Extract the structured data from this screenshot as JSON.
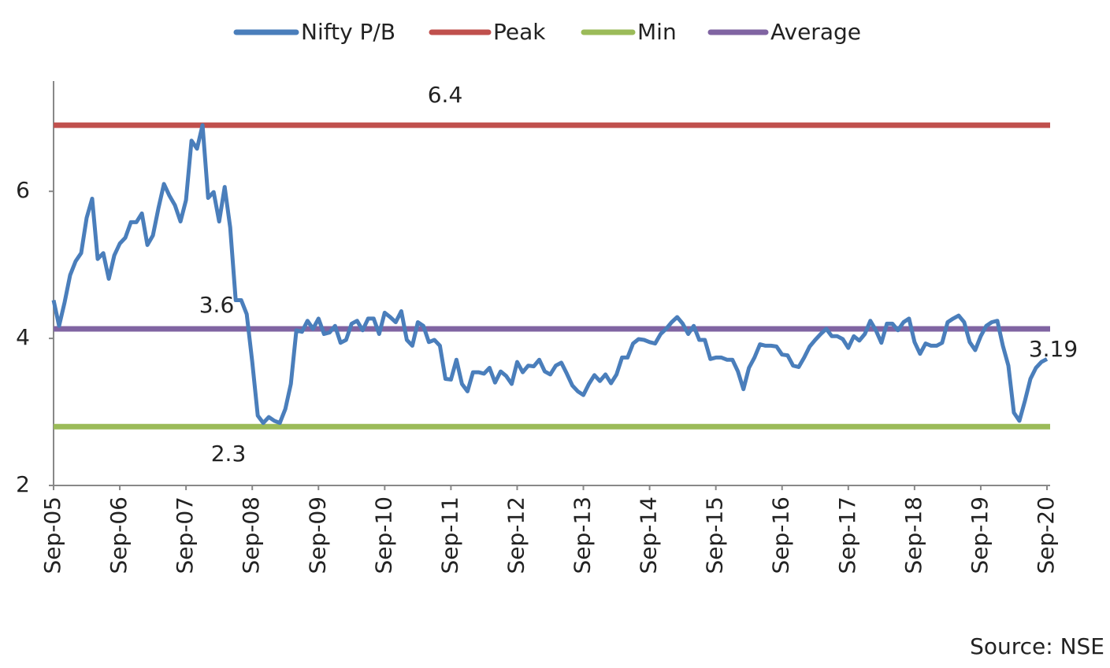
{
  "chart_data": {
    "type": "line",
    "categories": [
      "Sep-05",
      null,
      null,
      null,
      null,
      null,
      null,
      null,
      null,
      null,
      null,
      null,
      "Sep-06",
      null,
      null,
      null,
      null,
      null,
      null,
      null,
      null,
      null,
      null,
      null,
      "Sep-07",
      null,
      null,
      null,
      null,
      null,
      null,
      null,
      null,
      null,
      null,
      null,
      "Sep-08",
      null,
      null,
      null,
      null,
      null,
      null,
      null,
      null,
      null,
      null,
      null,
      "Sep-09",
      null,
      null,
      null,
      null,
      null,
      null,
      null,
      null,
      null,
      null,
      null,
      "Sep-10",
      null,
      null,
      null,
      null,
      null,
      null,
      null,
      null,
      null,
      null,
      null,
      "Sep-11",
      null,
      null,
      null,
      null,
      null,
      null,
      null,
      null,
      null,
      null,
      null,
      "Sep-12",
      null,
      null,
      null,
      null,
      null,
      null,
      null,
      null,
      null,
      null,
      null,
      "Sep-13",
      null,
      null,
      null,
      null,
      null,
      null,
      null,
      null,
      null,
      null,
      null,
      "Sep-14",
      null,
      null,
      null,
      null,
      null,
      null,
      null,
      null,
      null,
      null,
      null,
      "Sep-15",
      null,
      null,
      null,
      null,
      null,
      null,
      null,
      null,
      null,
      null,
      null,
      "Sep-16",
      null,
      null,
      null,
      null,
      null,
      null,
      null,
      null,
      null,
      null,
      null,
      "Sep-17",
      null,
      null,
      null,
      null,
      null,
      null,
      null,
      null,
      null,
      null,
      null,
      "Sep-18",
      null,
      null,
      null,
      null,
      null,
      null,
      null,
      null,
      null,
      null,
      null,
      "Sep-19",
      null,
      null,
      null,
      null,
      null,
      null,
      null,
      null,
      null,
      null,
      null,
      "Sep-20"
    ],
    "series": [
      {
        "name": "Nifty P/B",
        "color": "#4a7ebb",
        "values": [
          4.52,
          4.17,
          4.49,
          4.86,
          5.05,
          5.16,
          5.64,
          5.9,
          5.08,
          5.16,
          4.81,
          5.13,
          5.29,
          5.37,
          5.58,
          5.58,
          5.7,
          5.27,
          5.4,
          5.77,
          6.1,
          5.94,
          5.81,
          5.59,
          5.88,
          6.69,
          6.58,
          6.9,
          5.91,
          5.99,
          5.59,
          6.06,
          5.51,
          4.52,
          4.52,
          4.33,
          3.68,
          2.95,
          2.85,
          2.93,
          2.88,
          2.85,
          3.04,
          3.38,
          4.11,
          4.09,
          4.24,
          4.13,
          4.27,
          4.06,
          4.08,
          4.17,
          3.94,
          3.98,
          4.2,
          4.24,
          4.11,
          4.27,
          4.27,
          4.06,
          4.35,
          4.29,
          4.22,
          4.37,
          3.98,
          3.9,
          4.22,
          4.17,
          3.95,
          3.98,
          3.9,
          3.45,
          3.44,
          3.71,
          3.38,
          3.28,
          3.54,
          3.54,
          3.52,
          3.6,
          3.4,
          3.55,
          3.49,
          3.38,
          3.68,
          3.54,
          3.63,
          3.62,
          3.71,
          3.55,
          3.51,
          3.63,
          3.67,
          3.52,
          3.36,
          3.28,
          3.23,
          3.38,
          3.5,
          3.42,
          3.51,
          3.39,
          3.51,
          3.74,
          3.74,
          3.93,
          3.99,
          3.98,
          3.95,
          3.93,
          4.06,
          4.13,
          4.22,
          4.29,
          4.2,
          4.06,
          4.17,
          3.98,
          3.98,
          3.72,
          3.74,
          3.74,
          3.71,
          3.71,
          3.55,
          3.31,
          3.6,
          3.74,
          3.92,
          3.9,
          3.9,
          3.89,
          3.78,
          3.77,
          3.63,
          3.61,
          3.74,
          3.89,
          3.98,
          4.06,
          4.13,
          4.03,
          4.03,
          3.99,
          3.87,
          4.03,
          3.97,
          4.06,
          4.24,
          4.11,
          3.94,
          4.2,
          4.2,
          4.11,
          4.22,
          4.27,
          3.95,
          3.79,
          3.93,
          3.9,
          3.9,
          3.94,
          4.22,
          4.27,
          4.31,
          4.22,
          3.95,
          3.84,
          4.03,
          4.17,
          4.22,
          4.24,
          3.9,
          3.63,
          2.99,
          2.88,
          3.15,
          3.45,
          3.6,
          3.68,
          3.72
        ]
      }
    ],
    "reference_lines": [
      {
        "name": "Peak",
        "color": "#c0504d",
        "value": 6.9
      },
      {
        "name": "Min",
        "color": "#9bbb59",
        "value": 2.8
      },
      {
        "name": "Average",
        "color": "#8064a2",
        "value": 4.13
      }
    ],
    "annotations": [
      "6.4",
      "3.6",
      "2.3",
      "3.19"
    ],
    "ylim": [
      2,
      7.5
    ],
    "yticks": [
      2,
      4,
      6
    ],
    "grid": false,
    "legend": "top",
    "source": "Source: NSE"
  }
}
